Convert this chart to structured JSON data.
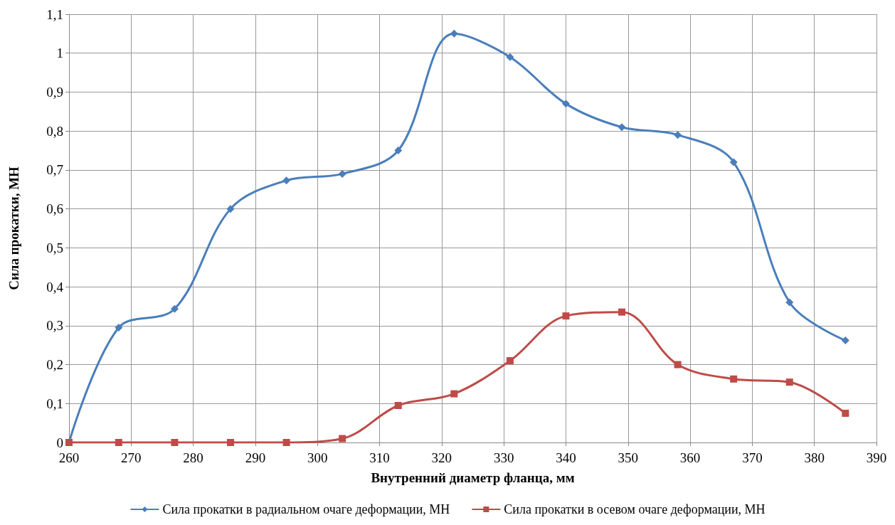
{
  "chart_data": {
    "type": "line",
    "xlabel": "Внутренний диаметр фланца, мм",
    "ylabel": "Сила прокатки, МН",
    "x": [
      260,
      268,
      277,
      286,
      295,
      304,
      313,
      322,
      331,
      340,
      349,
      358,
      367,
      376,
      385
    ],
    "series": [
      {
        "name": "Сила прокатки в радиальном очаге деформации, МН",
        "color": "#4a7ebb",
        "marker": "diamond",
        "values": [
          0,
          0.295,
          0.343,
          0.6,
          0.673,
          0.69,
          0.75,
          1.05,
          0.99,
          0.87,
          0.81,
          0.79,
          0.72,
          0.36,
          0.262
        ]
      },
      {
        "name": "Сила прокатки в осевом очаге деформации, МН",
        "color": "#be4b48",
        "marker": "square",
        "values": [
          0,
          0,
          0,
          0,
          0,
          0.01,
          0.095,
          0.125,
          0.21,
          0.325,
          0.335,
          0.2,
          0.163,
          0.155,
          0.075
        ]
      }
    ],
    "xlim": [
      260,
      390
    ],
    "xticks": [
      260,
      270,
      280,
      290,
      300,
      310,
      320,
      330,
      340,
      350,
      360,
      370,
      380,
      390
    ],
    "ylim": [
      0,
      1.1
    ],
    "yticks": [
      0,
      {
        "value": 0.1,
        "label": "0,1"
      },
      {
        "value": 0.2,
        "label": "0,2"
      },
      {
        "value": 0.3,
        "label": "0,3"
      },
      {
        "value": 0.4,
        "label": "0,4"
      },
      {
        "value": 0.5,
        "label": "0,5"
      },
      {
        "value": 0.6,
        "label": "0,6"
      },
      {
        "value": 0.7,
        "label": "0,7"
      },
      {
        "value": 0.8,
        "label": "0,8"
      },
      {
        "value": 0.9,
        "label": "0,9"
      },
      1,
      {
        "value": 1.1,
        "label": "1,1"
      }
    ],
    "grid": true,
    "legend": "bottom",
    "line_style": "solid"
  }
}
